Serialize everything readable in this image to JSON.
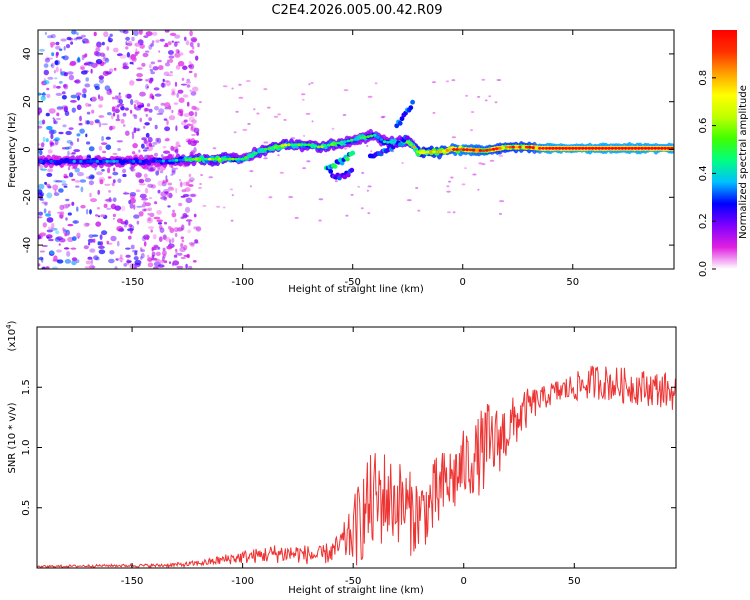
{
  "title": "C2E4.2026.005.00.42.R09",
  "chart_data": [
    {
      "type": "heatmap",
      "id": "spectrogram",
      "xlabel": "Height of straight line (km)",
      "ylabel": "Frequency (Hz)",
      "xlim": [
        -193,
        96
      ],
      "ylim": [
        -50,
        50
      ],
      "xticks": [
        -150,
        -100,
        -50,
        0,
        50
      ],
      "xticklabels": [
        "-150",
        "-100",
        "-50",
        "0",
        "50"
      ],
      "yticks": [
        -40,
        -20,
        0,
        20,
        40
      ],
      "yticklabels": [
        "-40",
        "-20",
        "0",
        "20",
        "40"
      ],
      "colorbar": {
        "label": "Normalized spectral amplitude",
        "range": [
          0,
          1
        ],
        "ticks": [
          0.0,
          0.2,
          0.4,
          0.6,
          0.8
        ],
        "ticklabels": [
          "0.0",
          "0.2",
          "0.4",
          "0.6",
          "0.8"
        ],
        "colormap": [
          "#ffffff",
          "#e020e0",
          "#8000ff",
          "#0000ff",
          "#00c0ff",
          "#00ff80",
          "#40ff00",
          "#c0ff00",
          "#ffff00",
          "#ffa000",
          "#ff3000",
          "#ff0000"
        ]
      },
      "ridge": {
        "x": [
          -193,
          -180,
          -165,
          -150,
          -140,
          -130,
          -120,
          -110,
          -100,
          -95,
          -90,
          -85,
          -80,
          -75,
          -70,
          -65,
          -60,
          -55,
          -50,
          -45,
          -40,
          -35,
          -30,
          -25,
          -22,
          -20,
          -15,
          -10,
          -5,
          0,
          10,
          20,
          30,
          35,
          40,
          60,
          80,
          96
        ],
        "freq": [
          -5,
          -5,
          -5,
          -5,
          -5,
          -4.5,
          -4,
          -4,
          -4,
          -2,
          0,
          1,
          2,
          2,
          2,
          1,
          2,
          3,
          4,
          5,
          6,
          3,
          3,
          3,
          1,
          -1.5,
          -1,
          -1,
          0,
          0,
          -0.5,
          1,
          1,
          0.5,
          0.5,
          0.5,
          0.5,
          0.5
        ],
        "amplitude": [
          0.3,
          0.3,
          0.35,
          0.3,
          0.3,
          0.4,
          0.55,
          0.6,
          0.45,
          0.5,
          0.55,
          0.6,
          0.6,
          0.55,
          0.5,
          0.55,
          0.55,
          0.5,
          0.45,
          0.5,
          0.45,
          0.45,
          0.5,
          0.55,
          0.7,
          0.8,
          0.8,
          0.85,
          0.9,
          0.95,
          0.9,
          0.85,
          0.85,
          0.95,
          1.0,
          1.0,
          1.0,
          1.0
        ]
      },
      "branches": [
        {
          "x": [
            -62,
            -55,
            -50
          ],
          "freq": [
            -8,
            -5,
            -2
          ],
          "amplitude": 0.4
        },
        {
          "x": [
            -42,
            -35,
            -30,
            -25
          ],
          "freq": [
            -3,
            0,
            2,
            5
          ],
          "amplitude": 0.3
        },
        {
          "x": [
            -30,
            -25,
            -22
          ],
          "freq": [
            10,
            16,
            21
          ],
          "amplitude": 0.3
        },
        {
          "x": [
            -60,
            -55,
            -50
          ],
          "freq": [
            -10,
            -12,
            -9
          ],
          "amplitude": 0.25
        }
      ],
      "noise_region_x": [
        -193,
        -125
      ]
    },
    {
      "type": "line",
      "id": "snr",
      "xlabel": "Height of straight line (km)",
      "ylabel": "SNR (10 * v/v)",
      "multiplier_label": "(x10",
      "multiplier_exponent": "4",
      "xlim": [
        -193,
        96
      ],
      "ylim": [
        0,
        2
      ],
      "xticks": [
        -150,
        -100,
        -50,
        0,
        50
      ],
      "xticklabels": [
        "-150",
        "-100",
        "-50",
        "0",
        "50"
      ],
      "yticks": [
        0.5,
        1.0,
        1.5
      ],
      "yticklabels": [
        "0.5",
        "1.0",
        "1.5"
      ],
      "color": "#ee3333",
      "series": [
        {
          "name": "SNR",
          "x": [
            -193,
            -180,
            -160,
            -140,
            -125,
            -115,
            -105,
            -95,
            -85,
            -75,
            -65,
            -58,
            -52,
            -48,
            -44,
            -40,
            -36,
            -32,
            -28,
            -24,
            -20,
            -16,
            -12,
            -8,
            -4,
            0,
            5,
            10,
            15,
            20,
            25,
            30,
            35,
            40,
            50,
            60,
            70,
            80,
            90,
            96
          ],
          "base": [
            0.01,
            0.015,
            0.02,
            0.02,
            0.03,
            0.05,
            0.08,
            0.1,
            0.12,
            0.12,
            0.1,
            0.15,
            0.25,
            0.35,
            0.5,
            0.55,
            0.6,
            0.55,
            0.55,
            0.45,
            0.45,
            0.5,
            0.6,
            0.7,
            0.75,
            0.85,
            0.9,
            1.0,
            1.05,
            1.15,
            1.25,
            1.35,
            1.4,
            1.45,
            1.5,
            1.55,
            1.52,
            1.5,
            1.48,
            1.45
          ],
          "spread": [
            0.01,
            0.01,
            0.01,
            0.015,
            0.02,
            0.03,
            0.05,
            0.06,
            0.08,
            0.08,
            0.08,
            0.1,
            0.2,
            0.35,
            0.4,
            0.45,
            0.4,
            0.35,
            0.35,
            0.35,
            0.3,
            0.3,
            0.35,
            0.3,
            0.3,
            0.3,
            0.3,
            0.4,
            0.3,
            0.25,
            0.2,
            0.15,
            0.1,
            0.1,
            0.12,
            0.15,
            0.15,
            0.15,
            0.15,
            0.15
          ]
        }
      ]
    }
  ]
}
